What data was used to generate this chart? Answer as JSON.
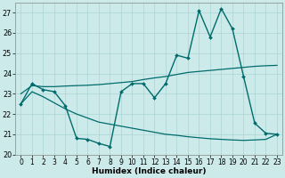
{
  "xlabel": "Humidex (Indice chaleur)",
  "bg_color": "#cceaea",
  "line_color": "#006b6b",
  "grid_color": "#aad4d4",
  "xlim": [
    -0.5,
    23.5
  ],
  "ylim": [
    20,
    27.5
  ],
  "yticks": [
    20,
    21,
    22,
    23,
    24,
    25,
    26,
    27
  ],
  "xticks": [
    0,
    1,
    2,
    3,
    4,
    5,
    6,
    7,
    8,
    9,
    10,
    11,
    12,
    13,
    14,
    15,
    16,
    17,
    18,
    19,
    20,
    21,
    22,
    23
  ],
  "curve1_x": [
    0,
    1,
    2,
    3,
    4,
    5,
    6,
    7,
    8,
    9,
    10,
    11,
    12,
    13,
    14,
    15,
    16,
    17,
    18,
    19,
    20,
    21,
    22,
    23
  ],
  "curve1_y": [
    22.5,
    23.5,
    23.2,
    23.1,
    22.4,
    20.8,
    20.75,
    20.55,
    20.4,
    23.1,
    23.5,
    23.5,
    22.8,
    23.5,
    24.9,
    24.75,
    27.1,
    25.8,
    27.2,
    26.2,
    23.85,
    21.55,
    21.05,
    21.0
  ],
  "curve2_x": [
    0,
    1,
    2,
    3,
    4,
    5,
    6,
    7,
    8,
    9,
    10,
    11,
    12,
    13,
    14,
    15,
    16,
    17,
    18,
    19,
    20,
    21,
    22,
    23
  ],
  "curve2_y": [
    23.0,
    23.4,
    23.35,
    23.35,
    23.38,
    23.4,
    23.42,
    23.45,
    23.5,
    23.55,
    23.6,
    23.7,
    23.78,
    23.85,
    23.95,
    24.05,
    24.1,
    24.15,
    24.2,
    24.25,
    24.3,
    24.35,
    24.38,
    24.4
  ],
  "curve3_x": [
    0,
    1,
    2,
    3,
    4,
    5,
    6,
    7,
    8,
    9,
    10,
    11,
    12,
    13,
    14,
    15,
    16,
    17,
    18,
    19,
    20,
    21,
    22,
    23
  ],
  "curve3_y": [
    22.5,
    23.1,
    22.85,
    22.55,
    22.25,
    22.0,
    21.8,
    21.6,
    21.5,
    21.4,
    21.3,
    21.2,
    21.1,
    21.0,
    20.95,
    20.88,
    20.83,
    20.78,
    20.75,
    20.72,
    20.7,
    20.72,
    20.75,
    21.0
  ]
}
